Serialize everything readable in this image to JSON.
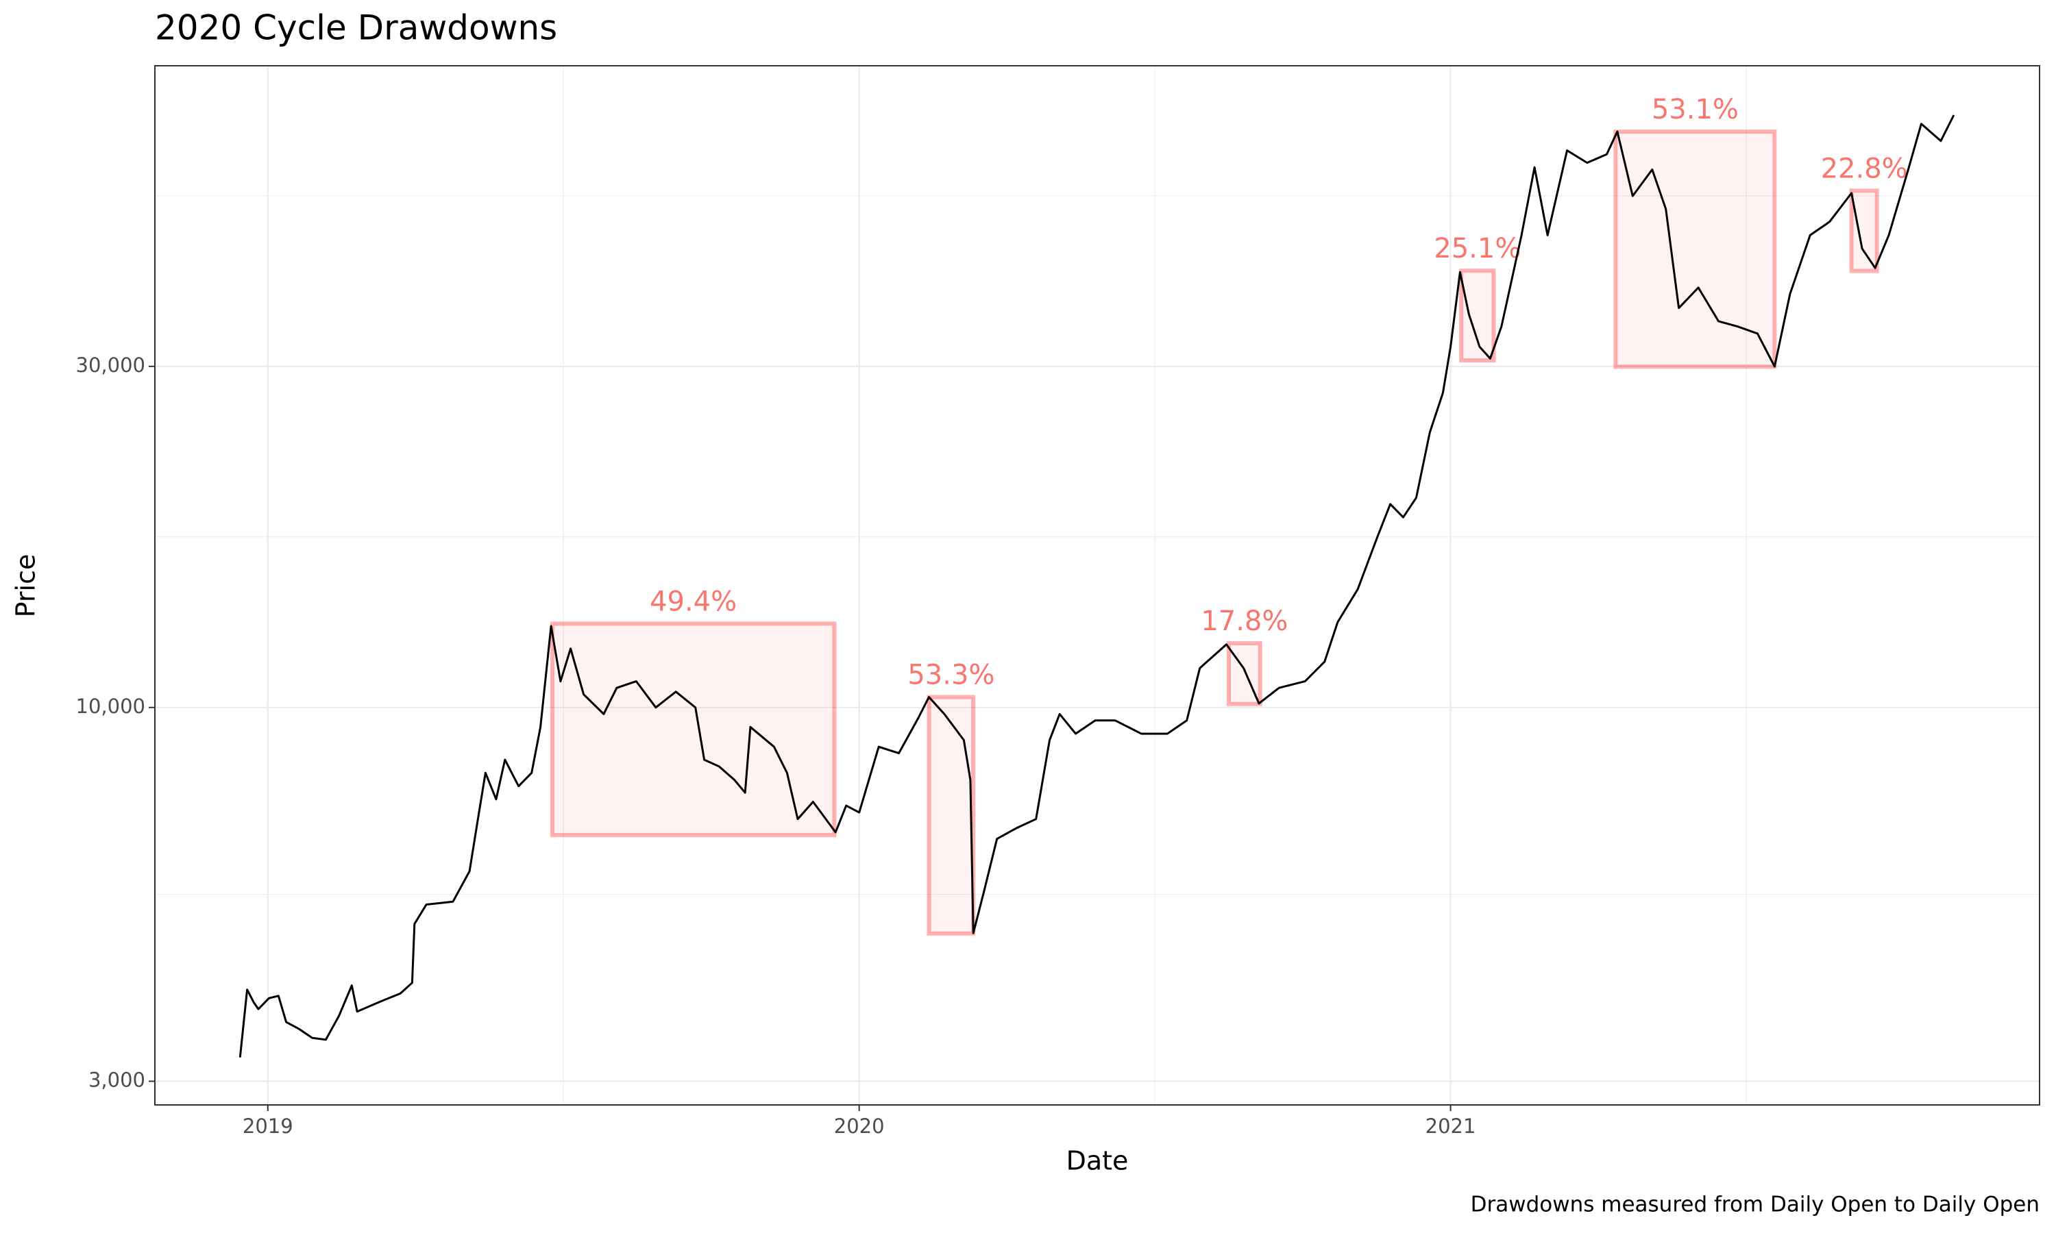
{
  "chart_data": {
    "type": "line",
    "title": "2020 Cycle Drawdowns",
    "xlabel": "Date",
    "ylabel": "Price",
    "caption": "Drawdowns measured from Daily Open to Daily Open",
    "yscale": "log",
    "grid": true,
    "color": "#000000",
    "xlim": [
      2018.809,
      2021.996
    ],
    "xticks": [
      2019,
      2020,
      2021
    ],
    "ylim": [
      2780,
      79000
    ],
    "yticks": [
      {
        "value": 3000,
        "label": "3,000"
      },
      {
        "value": 10000,
        "label": "10,000"
      },
      {
        "value": 30000,
        "label": "30,000"
      }
    ],
    "x": [
      2018.953,
      2018.965,
      2018.976,
      2018.984,
      2019.002,
      2019.018,
      2019.031,
      2019.053,
      2019.075,
      2019.098,
      2019.12,
      2019.142,
      2019.151,
      2019.191,
      2019.224,
      2019.244,
      2019.248,
      2019.268,
      2019.313,
      2019.341,
      2019.357,
      2019.368,
      2019.386,
      2019.401,
      2019.424,
      2019.446,
      2019.461,
      2019.479,
      2019.495,
      2019.512,
      2019.534,
      2019.568,
      2019.59,
      2019.623,
      2019.656,
      2019.69,
      2019.723,
      2019.738,
      2019.763,
      2019.789,
      2019.807,
      2019.816,
      2019.856,
      2019.878,
      2019.896,
      2019.922,
      2019.96,
      2019.978,
      2020.0,
      2020.033,
      2020.067,
      2020.1,
      2020.118,
      2020.144,
      2020.177,
      2020.188,
      2020.193,
      2020.211,
      2020.233,
      2020.266,
      2020.299,
      2020.322,
      2020.339,
      2020.366,
      2020.399,
      2020.433,
      2020.477,
      2020.521,
      2020.554,
      2020.576,
      2020.621,
      2020.65,
      2020.676,
      2020.71,
      2020.754,
      2020.787,
      2020.809,
      2020.843,
      2020.876,
      2020.898,
      2020.92,
      2020.942,
      2020.965,
      2020.987,
      2021.0,
      2021.016,
      2021.031,
      2021.049,
      2021.067,
      2021.086,
      2021.12,
      2021.142,
      2021.164,
      2021.197,
      2021.231,
      2021.264,
      2021.282,
      2021.308,
      2021.341,
      2021.364,
      2021.386,
      2021.419,
      2021.453,
      2021.486,
      2021.519,
      2021.548,
      2021.574,
      2021.608,
      2021.641,
      2021.678,
      2021.696,
      2021.718,
      2021.741,
      2021.774,
      2021.796,
      2021.829,
      2021.851
    ],
    "values": [
      3240,
      4030,
      3870,
      3785,
      3920,
      3950,
      3630,
      3550,
      3450,
      3430,
      3700,
      4085,
      3755,
      3880,
      3980,
      4120,
      4980,
      5300,
      5350,
      5900,
      7130,
      8100,
      7440,
      8450,
      7760,
      8100,
      9390,
      12995,
      10880,
      12090,
      10430,
      9790,
      10650,
      10880,
      10000,
      10520,
      10000,
      8450,
      8270,
      7920,
      7600,
      9390,
      8810,
      8100,
      6980,
      7380,
      6690,
      7290,
      7130,
      8810,
      8630,
      9670,
      10340,
      9790,
      9000,
      7920,
      4835,
      5530,
      6550,
      6780,
      6980,
      9000,
      9790,
      9190,
      9590,
      9590,
      9190,
      9190,
      9590,
      11350,
      12250,
      11350,
      10130,
      10650,
      10880,
      11590,
      13160,
      14630,
      17300,
      19250,
      18450,
      19650,
      24270,
      27540,
      31960,
      40640,
      35500,
      31960,
      30770,
      34100,
      45770,
      56960,
      45770,
      60150,
      57800,
      59400,
      63900,
      51940,
      56550,
      49800,
      36200,
      38660,
      34700,
      34100,
      33350,
      29990,
      37880,
      45770,
      47800,
      52420,
      43830,
      41190,
      45770,
      56550,
      65520,
      62000,
      67400
    ],
    "drawdowns": {
      "color": "#F8766D",
      "start": [
        2019.481,
        2020.118,
        2020.625,
        2021.018,
        2021.279,
        2021.678
      ],
      "end": [
        2019.958,
        2020.193,
        2020.678,
        2021.073,
        2021.548,
        2021.721
      ],
      "high": [
        13100,
        10340,
        12300,
        40830,
        63900,
        52840
      ],
      "values": [
        49.4,
        53.3,
        17.8,
        25.1,
        53.1,
        22.8
      ],
      "value_labels": [
        "49.4%",
        "53.3%",
        "17.8%",
        "25.1%",
        "53.1%",
        "22.8%"
      ]
    }
  }
}
